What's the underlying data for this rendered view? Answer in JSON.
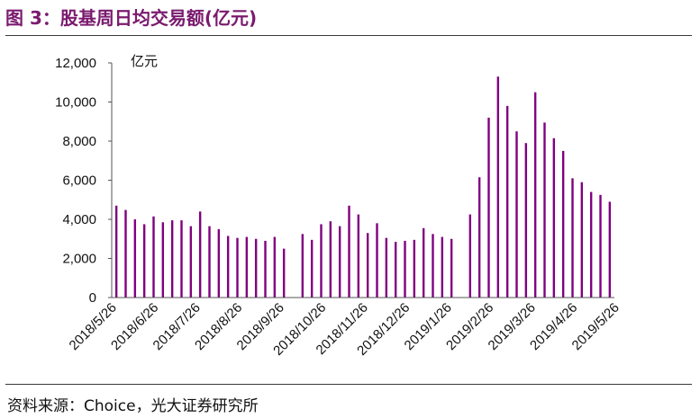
{
  "figure": {
    "title": "图 3：股基周日均交易额(亿元)",
    "source": "资料来源：Choice，光大证券研究所"
  },
  "colors": {
    "bar": "#800080",
    "title": "#7a1a6e",
    "axis": "#555555",
    "rule": "#3a3a3a"
  },
  "chart_data": {
    "type": "bar",
    "title": "",
    "xlabel": "",
    "ylabel": "亿元",
    "ylim": [
      0,
      12000
    ],
    "yticks": [
      0,
      2000,
      4000,
      6000,
      8000,
      10000,
      12000
    ],
    "ytick_labels": [
      "0",
      "2,000",
      "4,000",
      "6,000",
      "8,000",
      "10,000",
      "12,000"
    ],
    "xtick_labels": [
      "2018/5/26",
      "2018/6/26",
      "2018/7/26",
      "2018/8/26",
      "2018/9/26",
      "2018/10/26",
      "2018/11/26",
      "2018/12/26",
      "2019/1/26",
      "2019/2/26",
      "2019/3/26",
      "2019/4/26",
      "2019/5/26"
    ],
    "grid": false,
    "legend": "none",
    "series": [
      {
        "values": [
          4700,
          4480,
          4000,
          3750,
          4150,
          3850,
          3950,
          3950,
          3650,
          4400,
          3650,
          3500,
          3150,
          3050,
          3100,
          3000,
          2900,
          3100,
          2500,
          null,
          3250,
          2950,
          3750,
          3900,
          3650,
          4700,
          4250,
          3300,
          3800,
          3050,
          2850,
          2900,
          2950,
          3550,
          3250,
          3100,
          3000,
          null,
          4250,
          6150,
          9200,
          11300,
          9800,
          8500,
          7900,
          10500,
          8950,
          8150,
          7500,
          6100,
          5900,
          5400,
          5250,
          4900
        ]
      }
    ]
  }
}
